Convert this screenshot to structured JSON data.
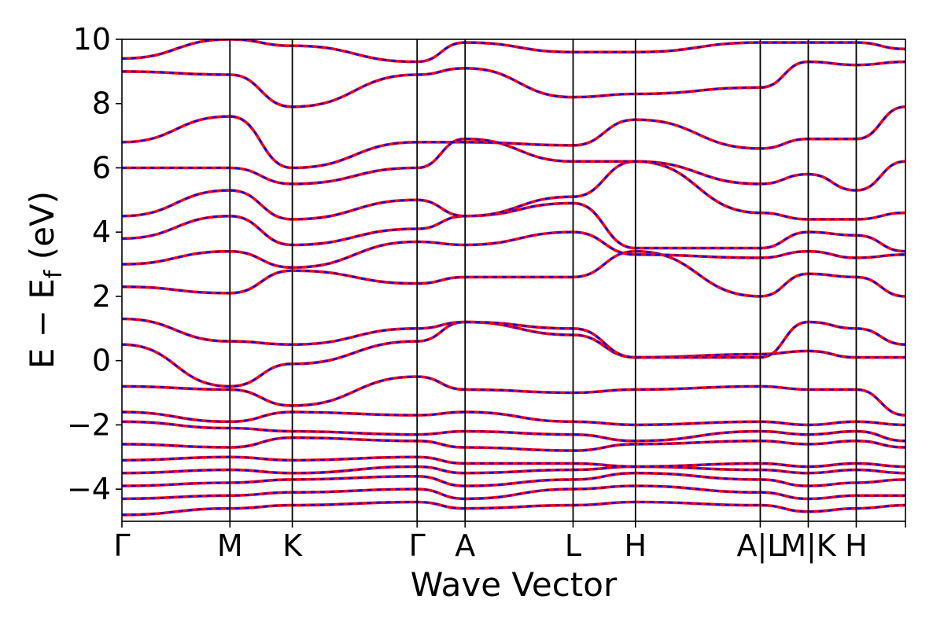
{
  "chart_data": {
    "type": "line",
    "title": "",
    "xlabel": "Wave Vector",
    "ylabel": {
      "prefix": "E − E",
      "subscript": "f",
      "suffix": " (eV)"
    },
    "ylim": [
      -5,
      10
    ],
    "y_ticks": [
      {
        "value": -4,
        "label": "−4"
      },
      {
        "value": -2,
        "label": "−2"
      },
      {
        "value": 0,
        "label": "0"
      },
      {
        "value": 2,
        "label": "2"
      },
      {
        "value": 4,
        "label": "4"
      },
      {
        "value": 6,
        "label": "6"
      },
      {
        "value": 8,
        "label": "8"
      },
      {
        "value": 10,
        "label": "10"
      }
    ],
    "k_path_length": 6.53,
    "k_points": [
      {
        "label": "Γ",
        "k": 0.0
      },
      {
        "label": "M",
        "k": 0.9
      },
      {
        "label": "K",
        "k": 1.42
      },
      {
        "label": "Γ",
        "k": 2.46
      },
      {
        "label": "A",
        "k": 2.86
      },
      {
        "label": "L",
        "k": 3.76
      },
      {
        "label": "H",
        "k": 4.28
      },
      {
        "label": "A|L",
        "k": 5.32
      },
      {
        "label": "M|K",
        "k": 5.72
      },
      {
        "label": "H",
        "k": 6.12
      }
    ],
    "extra_vlines": [
      6.53
    ],
    "series": [
      {
        "color": "#ff0000",
        "style": "solid"
      },
      {
        "color": "#0000ff",
        "style": "dashed"
      }
    ],
    "bands": [
      [
        -4.8,
        -4.6,
        -4.5,
        -4.4,
        -4.6,
        -4.5,
        -4.4,
        -4.5,
        -4.7,
        -4.6,
        -4.5
      ],
      [
        -4.3,
        -4.2,
        -4.1,
        -4.0,
        -4.3,
        -4.0,
        -3.9,
        -4.1,
        -4.3,
        -4.2,
        -4.2
      ],
      [
        -3.9,
        -3.8,
        -3.7,
        -3.6,
        -3.9,
        -3.7,
        -3.5,
        -3.7,
        -3.9,
        -3.8,
        -3.7
      ],
      [
        -3.5,
        -3.4,
        -3.5,
        -3.3,
        -3.5,
        -3.4,
        -3.3,
        -3.4,
        -3.5,
        -3.4,
        -3.5
      ],
      [
        -3.1,
        -3.0,
        -3.1,
        -3.0,
        -3.2,
        -3.2,
        -3.3,
        -3.2,
        -3.3,
        -3.2,
        -3.3
      ],
      [
        -2.6,
        -2.7,
        -2.4,
        -2.5,
        -2.7,
        -2.8,
        -2.6,
        -2.5,
        -2.6,
        -2.5,
        -2.7
      ],
      [
        -1.9,
        -2.1,
        -2.2,
        -2.3,
        -2.2,
        -2.3,
        -2.5,
        -2.2,
        -2.3,
        -2.2,
        -2.5
      ],
      [
        -1.6,
        -1.9,
        -1.6,
        -1.7,
        -1.6,
        -1.9,
        -2.0,
        -1.9,
        -2.0,
        -1.9,
        -2.0
      ],
      [
        -0.8,
        -0.9,
        -1.4,
        -0.5,
        -0.9,
        -1.0,
        -0.9,
        -0.8,
        -0.9,
        -0.9,
        -1.7
      ],
      [
        0.5,
        -0.8,
        -0.1,
        0.6,
        1.2,
        0.8,
        0.1,
        0.2,
        0.3,
        0.1,
        0.1
      ],
      [
        1.3,
        0.6,
        0.5,
        1.0,
        1.2,
        1.0,
        0.1,
        0.1,
        1.2,
        1.0,
        0.5
      ],
      [
        2.3,
        2.1,
        2.8,
        2.4,
        2.6,
        2.6,
        3.4,
        2.0,
        2.7,
        2.6,
        2.0
      ],
      [
        3.0,
        3.4,
        2.9,
        3.7,
        3.6,
        4.0,
        3.3,
        3.2,
        3.4,
        3.2,
        3.3
      ],
      [
        3.8,
        4.5,
        3.6,
        4.1,
        4.5,
        4.9,
        3.5,
        3.5,
        4.0,
        3.9,
        3.4
      ],
      [
        4.5,
        5.3,
        4.4,
        5.0,
        4.5,
        5.1,
        6.2,
        4.6,
        4.4,
        4.4,
        4.6
      ],
      [
        6.0,
        6.0,
        5.5,
        6.0,
        6.9,
        6.2,
        6.2,
        5.5,
        5.8,
        5.3,
        6.2
      ],
      [
        6.8,
        7.6,
        6.0,
        6.8,
        6.8,
        6.7,
        7.5,
        6.6,
        6.9,
        6.9,
        7.9
      ],
      [
        9.0,
        8.9,
        7.9,
        8.9,
        9.1,
        8.2,
        8.3,
        8.5,
        9.3,
        9.2,
        9.3
      ],
      [
        9.4,
        10.0,
        9.8,
        9.3,
        9.9,
        9.6,
        9.6,
        9.9,
        9.9,
        9.9,
        9.7
      ]
    ]
  }
}
